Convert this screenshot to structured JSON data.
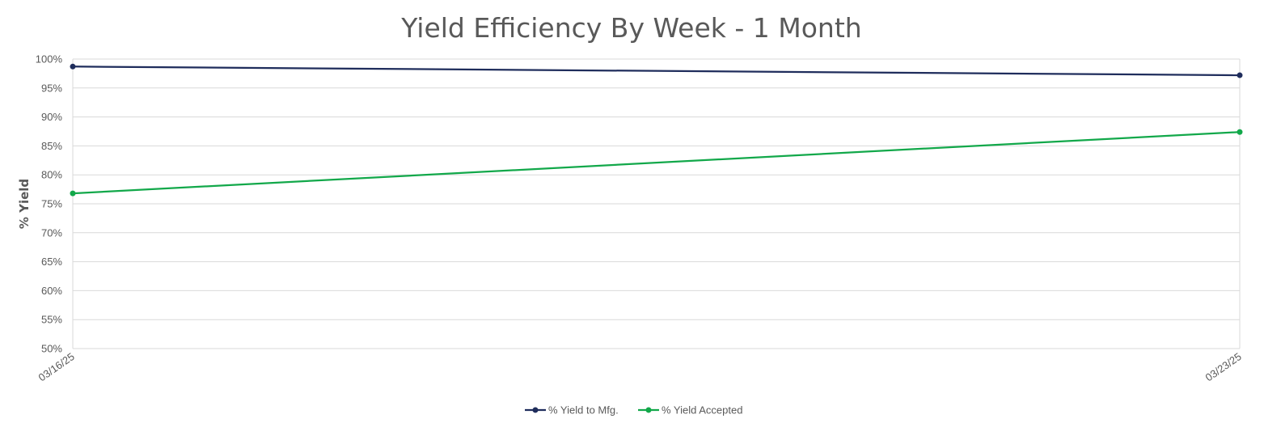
{
  "chart_data": {
    "type": "line",
    "title": "Yield Efficiency By Week - 1 Month",
    "ylabel": "% Yield",
    "xlabel": "",
    "x": [
      "03/16/25",
      "03/23/25"
    ],
    "ylim": [
      50,
      100
    ],
    "ytick_step": 5,
    "ytick_suffix": "%",
    "grid": true,
    "legend_position": "bottom",
    "series": [
      {
        "name": "% Yield to Mfg.",
        "values": [
          98.7,
          97.2
        ],
        "color": "#1f2d5c"
      },
      {
        "name": "% Yield Accepted",
        "values": [
          76.8,
          87.4
        ],
        "color": "#12a84a"
      }
    ]
  }
}
